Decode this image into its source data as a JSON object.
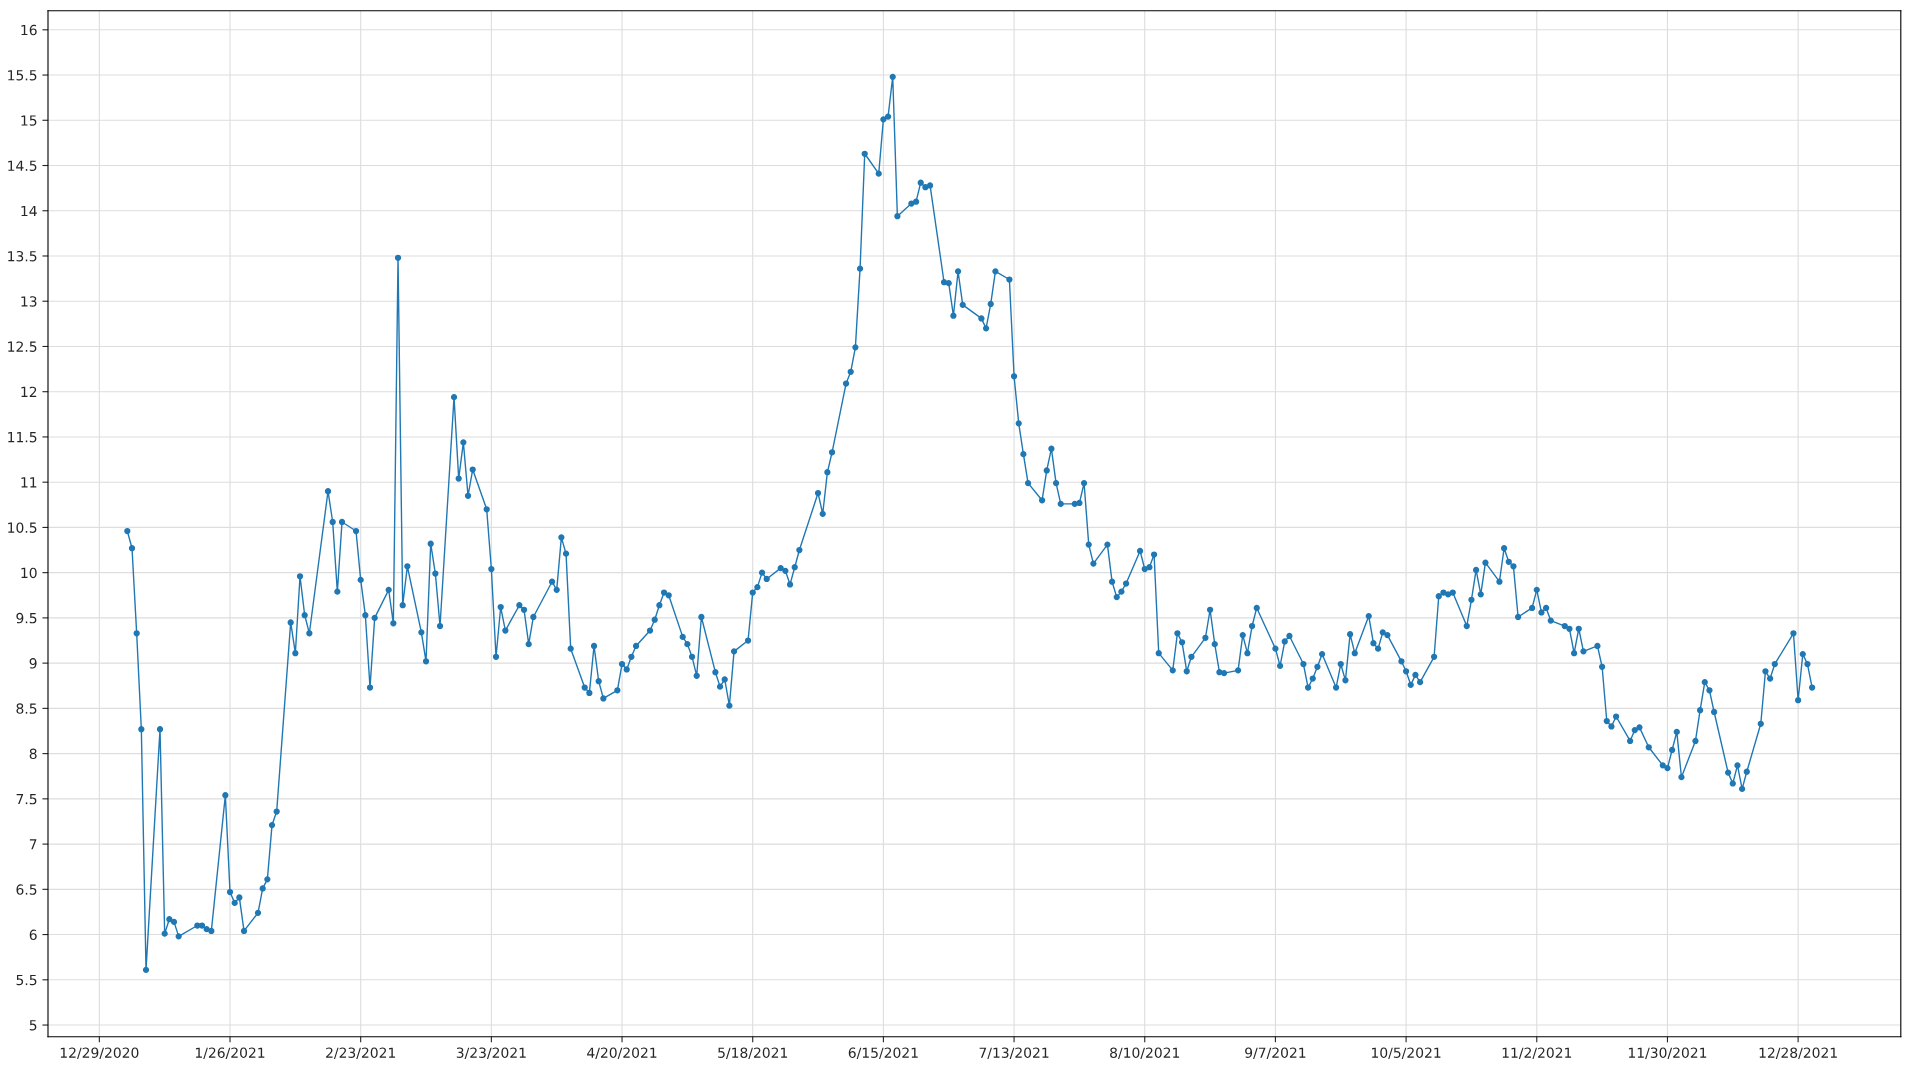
{
  "chart_data": {
    "type": "line",
    "marker": "circle",
    "line_style": "solid",
    "grid": true,
    "xlim": [
      "2020-12-18",
      "2022-01-19"
    ],
    "xticks": [
      {
        "value": "2020-12-29",
        "label": "12/29/2020"
      },
      {
        "value": "2021-01-26",
        "label": "1/26/2021"
      },
      {
        "value": "2021-02-23",
        "label": "2/23/2021"
      },
      {
        "value": "2021-03-23",
        "label": "3/23/2021"
      },
      {
        "value": "2021-04-20",
        "label": "4/20/2021"
      },
      {
        "value": "2021-05-18",
        "label": "5/18/2021"
      },
      {
        "value": "2021-06-15",
        "label": "6/15/2021"
      },
      {
        "value": "2021-07-13",
        "label": "7/13/2021"
      },
      {
        "value": "2021-08-10",
        "label": "8/10/2021"
      },
      {
        "value": "2021-09-07",
        "label": "9/7/2021"
      },
      {
        "value": "2021-10-05",
        "label": "10/5/2021"
      },
      {
        "value": "2021-11-02",
        "label": "11/2/2021"
      },
      {
        "value": "2021-11-30",
        "label": "11/30/2021"
      },
      {
        "value": "2021-12-28",
        "label": "12/28/2021"
      }
    ],
    "ylim": [
      4.87,
      16.21
    ],
    "yticks": [
      5,
      5.5,
      6,
      6.5,
      7,
      7.5,
      8,
      8.5,
      9,
      9.5,
      10,
      10.5,
      11,
      11.5,
      12,
      12.5,
      13,
      13.5,
      14,
      14.5,
      15,
      15.5,
      16
    ],
    "series": [
      {
        "color": "#1f77b4",
        "x": [
          "2021-01-04",
          "2021-01-05",
          "2021-01-06",
          "2021-01-07",
          "2021-01-08",
          "2021-01-11",
          "2021-01-12",
          "2021-01-13",
          "2021-01-14",
          "2021-01-15",
          "2021-01-19",
          "2021-01-20",
          "2021-01-21",
          "2021-01-22",
          "2021-01-25",
          "2021-01-26",
          "2021-01-27",
          "2021-01-28",
          "2021-01-29",
          "2021-02-01",
          "2021-02-02",
          "2021-02-03",
          "2021-02-04",
          "2021-02-05",
          "2021-02-08",
          "2021-02-09",
          "2021-02-10",
          "2021-02-11",
          "2021-02-12",
          "2021-02-16",
          "2021-02-17",
          "2021-02-18",
          "2021-02-19",
          "2021-02-22",
          "2021-02-23",
          "2021-02-24",
          "2021-02-25",
          "2021-02-26",
          "2021-03-01",
          "2021-03-02",
          "2021-03-03",
          "2021-03-04",
          "2021-03-05",
          "2021-03-08",
          "2021-03-09",
          "2021-03-10",
          "2021-03-11",
          "2021-03-12",
          "2021-03-15",
          "2021-03-16",
          "2021-03-17",
          "2021-03-18",
          "2021-03-19",
          "2021-03-22",
          "2021-03-23",
          "2021-03-24",
          "2021-03-25",
          "2021-03-26",
          "2021-03-29",
          "2021-03-30",
          "2021-03-31",
          "2021-04-01",
          "2021-04-05",
          "2021-04-06",
          "2021-04-07",
          "2021-04-08",
          "2021-04-09",
          "2021-04-12",
          "2021-04-13",
          "2021-04-14",
          "2021-04-15",
          "2021-04-16",
          "2021-04-19",
          "2021-04-20",
          "2021-04-21",
          "2021-04-22",
          "2021-04-23",
          "2021-04-26",
          "2021-04-27",
          "2021-04-28",
          "2021-04-29",
          "2021-04-30",
          "2021-05-03",
          "2021-05-04",
          "2021-05-05",
          "2021-05-06",
          "2021-05-07",
          "2021-05-10",
          "2021-05-11",
          "2021-05-12",
          "2021-05-13",
          "2021-05-14",
          "2021-05-17",
          "2021-05-18",
          "2021-05-19",
          "2021-05-20",
          "2021-05-21",
          "2021-05-24",
          "2021-05-25",
          "2021-05-26",
          "2021-05-27",
          "2021-05-28",
          "2021-06-01",
          "2021-06-02",
          "2021-06-03",
          "2021-06-04",
          "2021-06-07",
          "2021-06-08",
          "2021-06-09",
          "2021-06-10",
          "2021-06-11",
          "2021-06-14",
          "2021-06-15",
          "2021-06-16",
          "2021-06-17",
          "2021-06-18",
          "2021-06-21",
          "2021-06-22",
          "2021-06-23",
          "2021-06-24",
          "2021-06-25",
          "2021-06-28",
          "2021-06-29",
          "2021-06-30",
          "2021-07-01",
          "2021-07-02",
          "2021-07-06",
          "2021-07-07",
          "2021-07-08",
          "2021-07-09",
          "2021-07-12",
          "2021-07-13",
          "2021-07-14",
          "2021-07-15",
          "2021-07-16",
          "2021-07-19",
          "2021-07-20",
          "2021-07-21",
          "2021-07-22",
          "2021-07-23",
          "2021-07-26",
          "2021-07-27",
          "2021-07-28",
          "2021-07-29",
          "2021-07-30",
          "2021-08-02",
          "2021-08-03",
          "2021-08-04",
          "2021-08-05",
          "2021-08-06",
          "2021-08-09",
          "2021-08-10",
          "2021-08-11",
          "2021-08-12",
          "2021-08-13",
          "2021-08-16",
          "2021-08-17",
          "2021-08-18",
          "2021-08-19",
          "2021-08-20",
          "2021-08-23",
          "2021-08-24",
          "2021-08-25",
          "2021-08-26",
          "2021-08-27",
          "2021-08-30",
          "2021-08-31",
          "2021-09-01",
          "2021-09-02",
          "2021-09-03",
          "2021-09-07",
          "2021-09-08",
          "2021-09-09",
          "2021-09-10",
          "2021-09-13",
          "2021-09-14",
          "2021-09-15",
          "2021-09-16",
          "2021-09-17",
          "2021-09-20",
          "2021-09-21",
          "2021-09-22",
          "2021-09-23",
          "2021-09-24",
          "2021-09-27",
          "2021-09-28",
          "2021-09-29",
          "2021-09-30",
          "2021-10-01",
          "2021-10-04",
          "2021-10-05",
          "2021-10-06",
          "2021-10-07",
          "2021-10-08",
          "2021-10-11",
          "2021-10-12",
          "2021-10-13",
          "2021-10-14",
          "2021-10-15",
          "2021-10-18",
          "2021-10-19",
          "2021-10-20",
          "2021-10-21",
          "2021-10-22",
          "2021-10-25",
          "2021-10-26",
          "2021-10-27",
          "2021-10-28",
          "2021-10-29",
          "2021-11-01",
          "2021-11-02",
          "2021-11-03",
          "2021-11-04",
          "2021-11-05",
          "2021-11-08",
          "2021-11-09",
          "2021-11-10",
          "2021-11-11",
          "2021-11-12",
          "2021-11-15",
          "2021-11-16",
          "2021-11-17",
          "2021-11-18",
          "2021-11-19",
          "2021-11-22",
          "2021-11-23",
          "2021-11-24",
          "2021-11-26",
          "2021-11-29",
          "2021-11-30",
          "2021-12-01",
          "2021-12-02",
          "2021-12-03",
          "2021-12-06",
          "2021-12-07",
          "2021-12-08",
          "2021-12-09",
          "2021-12-10",
          "2021-12-13",
          "2021-12-14",
          "2021-12-15",
          "2021-12-16",
          "2021-12-17",
          "2021-12-20",
          "2021-12-21",
          "2021-12-22",
          "2021-12-23",
          "2021-12-27",
          "2021-12-28",
          "2021-12-29",
          "2021-12-30",
          "2021-12-31"
        ],
        "values": [
          10.46,
          10.27,
          9.33,
          8.27,
          5.61,
          8.27,
          6.01,
          6.17,
          6.14,
          5.98,
          6.1,
          6.1,
          6.06,
          6.04,
          7.54,
          6.47,
          6.35,
          6.41,
          6.04,
          6.24,
          6.51,
          6.61,
          7.21,
          7.36,
          9.45,
          9.11,
          9.96,
          9.53,
          9.33,
          10.9,
          10.56,
          9.79,
          10.56,
          10.46,
          9.92,
          9.53,
          8.73,
          9.5,
          9.81,
          9.44,
          13.48,
          9.64,
          10.07,
          9.34,
          9.02,
          10.32,
          9.99,
          9.41,
          11.94,
          11.04,
          11.44,
          10.85,
          11.14,
          10.7,
          10.04,
          9.07,
          9.62,
          9.36,
          9.64,
          9.59,
          9.21,
          9.51,
          9.9,
          9.81,
          10.39,
          10.21,
          9.16,
          8.73,
          8.67,
          9.19,
          8.8,
          8.61,
          8.7,
          8.99,
          8.93,
          9.07,
          9.19,
          9.36,
          9.48,
          9.64,
          9.78,
          9.75,
          9.29,
          9.21,
          9.07,
          8.86,
          9.51,
          8.9,
          8.74,
          8.82,
          8.53,
          9.13,
          9.25,
          9.78,
          9.84,
          10.0,
          9.93,
          10.05,
          10.02,
          9.87,
          10.06,
          10.25,
          10.88,
          10.65,
          11.11,
          11.33,
          12.09,
          12.22,
          12.49,
          13.36,
          14.63,
          14.41,
          15.01,
          15.04,
          15.48,
          13.94,
          14.08,
          14.1,
          14.31,
          14.26,
          14.28,
          13.21,
          13.2,
          12.84,
          13.33,
          12.96,
          12.81,
          12.7,
          12.97,
          13.33,
          13.24,
          12.17,
          11.65,
          11.31,
          10.99,
          10.8,
          11.13,
          11.37,
          10.99,
          10.76,
          10.76,
          10.77,
          10.99,
          10.31,
          10.1,
          10.31,
          9.9,
          9.73,
          9.79,
          9.88,
          10.24,
          10.04,
          10.06,
          10.2,
          9.11,
          8.92,
          9.33,
          9.23,
          8.91,
          9.07,
          9.28,
          9.59,
          9.21,
          8.9,
          8.89,
          8.92,
          9.31,
          9.11,
          9.41,
          9.61,
          9.16,
          8.97,
          9.24,
          9.3,
          8.99,
          8.73,
          8.83,
          8.96,
          9.1,
          8.73,
          8.99,
          8.81,
          9.32,
          9.11,
          9.52,
          9.22,
          9.16,
          9.34,
          9.31,
          9.02,
          8.91,
          8.76,
          8.87,
          8.79,
          9.07,
          9.74,
          9.78,
          9.76,
          9.78,
          9.41,
          9.7,
          10.03,
          9.76,
          10.11,
          9.9,
          10.27,
          10.12,
          10.07,
          9.51,
          9.61,
          9.81,
          9.56,
          9.61,
          9.47,
          9.41,
          9.38,
          9.11,
          9.38,
          9.13,
          9.19,
          8.96,
          8.36,
          8.3,
          8.41,
          8.14,
          8.26,
          8.29,
          8.07,
          7.87,
          7.84,
          8.04,
          8.24,
          7.74,
          8.14,
          8.48,
          8.79,
          8.7,
          8.46,
          7.79,
          7.67,
          7.87,
          7.61,
          7.8,
          8.33,
          8.91,
          8.83,
          8.99,
          9.33,
          8.59,
          9.1,
          8.99,
          8.73
        ]
      }
    ]
  }
}
